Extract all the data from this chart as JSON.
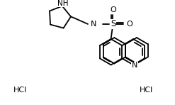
{
  "bg_color": "#ffffff",
  "line_color": "#000000",
  "figsize": [
    2.47,
    1.48
  ],
  "dpi": 100,
  "lw": 1.3,
  "hcl1": "HCl",
  "hcl2": "HCl",
  "nh_label": "NH",
  "h_label": "H",
  "n_label": "N",
  "s_label": "S",
  "o1_label": "O",
  "o2_label": "O",
  "font_size": 7.5
}
